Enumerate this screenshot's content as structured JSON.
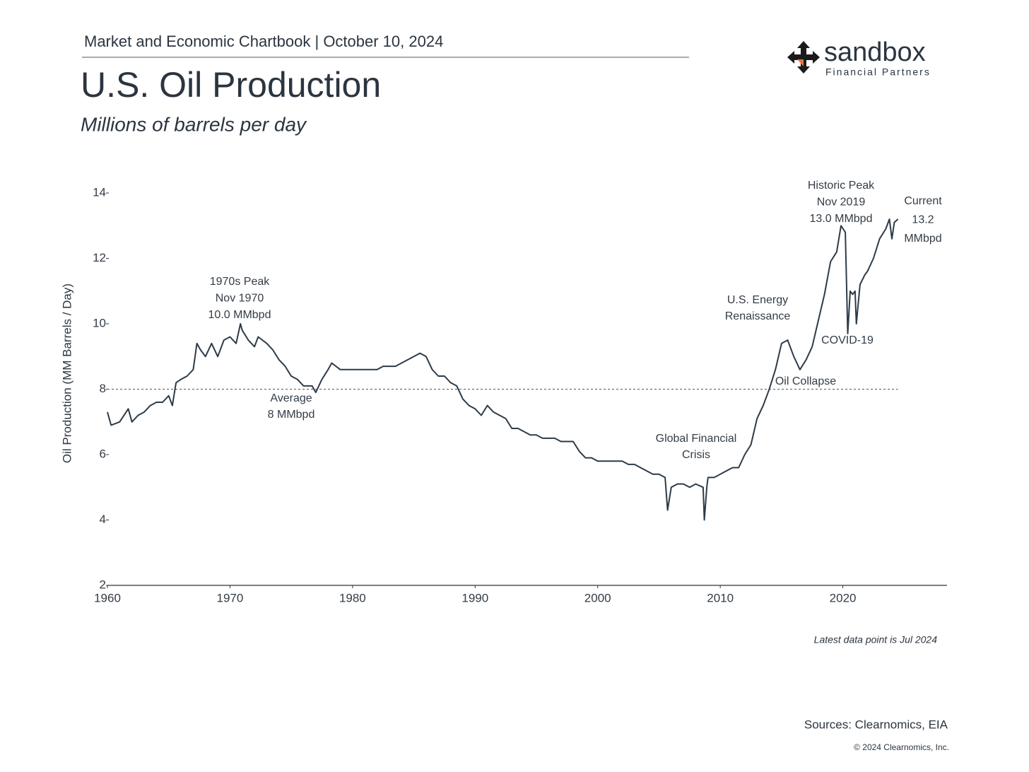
{
  "header": "Market and Economic Chartbook | October 10, 2024",
  "logo": {
    "name": "sandbox",
    "tagline": "Financial Partners"
  },
  "chart_data": {
    "type": "line",
    "title": "U.S. Oil Production",
    "subtitle": "Millions of barrels per day",
    "y_label": "Oil Production (MM Barrels / Day)",
    "color": "#2d3b48",
    "xlim": [
      1960,
      2028.5
    ],
    "xticks": [
      1960,
      1970,
      1980,
      1990,
      2000,
      2010,
      2020
    ],
    "ylim": [
      2,
      14
    ],
    "yticks": [
      2,
      4,
      6,
      8,
      10,
      12,
      14
    ],
    "grid": false,
    "reference_line": 8,
    "x": [
      1960,
      1960.3,
      1961,
      1961.7,
      1962,
      1962.5,
      1963,
      1963.5,
      1964,
      1964.5,
      1965,
      1965.3,
      1965.6,
      1966,
      1966.5,
      1967,
      1967.3,
      1967.6,
      1968,
      1968.5,
      1969,
      1969.5,
      1970,
      1970.5,
      1970.85,
      1971,
      1971.5,
      1972,
      1972.3,
      1973,
      1973.5,
      1974,
      1974.5,
      1975,
      1975.5,
      1976,
      1976.7,
      1977,
      1977.5,
      1978,
      1978.3,
      1979,
      1979.5,
      1980,
      1980.5,
      1981,
      1981.5,
      1982,
      1982.5,
      1983,
      1983.5,
      1984,
      1984.5,
      1985,
      1985.5,
      1986,
      1986.5,
      1987,
      1987.5,
      1988,
      1988.5,
      1989,
      1989.5,
      1990,
      1990.5,
      1991,
      1991.5,
      1992,
      1992.5,
      1993,
      1993.5,
      1994,
      1994.5,
      1995,
      1995.5,
      1996,
      1996.5,
      1997,
      1997.5,
      1998,
      1998.5,
      1999,
      1999.5,
      2000,
      2000.5,
      2001,
      2001.5,
      2002,
      2002.5,
      2003,
      2003.5,
      2004,
      2004.5,
      2005,
      2005.5,
      2005.7,
      2006,
      2006.5,
      2007,
      2007.5,
      2008,
      2008.6,
      2008.7,
      2008.9,
      2009,
      2009.5,
      2010,
      2010.5,
      2011,
      2011.5,
      2012,
      2012.5,
      2013,
      2013.5,
      2014,
      2014.5,
      2015,
      2015.5,
      2016,
      2016.5,
      2017,
      2017.5,
      2018,
      2018.5,
      2019,
      2019.5,
      2019.85,
      2020.2,
      2020.4,
      2020.6,
      2020.8,
      2021,
      2021.1,
      2021.4,
      2021.8,
      2022,
      2022.5,
      2023,
      2023.5,
      2023.8,
      2024,
      2024.2,
      2024.5
    ],
    "values": [
      7.3,
      6.9,
      7.0,
      7.4,
      7.0,
      7.2,
      7.3,
      7.5,
      7.6,
      7.6,
      7.8,
      7.5,
      8.2,
      8.3,
      8.4,
      8.6,
      9.4,
      9.2,
      9.0,
      9.4,
      9.0,
      9.5,
      9.6,
      9.4,
      10.0,
      9.8,
      9.5,
      9.3,
      9.6,
      9.4,
      9.2,
      8.9,
      8.7,
      8.4,
      8.3,
      8.1,
      8.1,
      7.9,
      8.3,
      8.6,
      8.8,
      8.6,
      8.6,
      8.6,
      8.6,
      8.6,
      8.6,
      8.6,
      8.7,
      8.7,
      8.7,
      8.8,
      8.9,
      9.0,
      9.1,
      9.0,
      8.6,
      8.4,
      8.4,
      8.2,
      8.1,
      7.7,
      7.5,
      7.4,
      7.2,
      7.5,
      7.3,
      7.2,
      7.1,
      6.8,
      6.8,
      6.7,
      6.6,
      6.6,
      6.5,
      6.5,
      6.5,
      6.4,
      6.4,
      6.4,
      6.1,
      5.9,
      5.9,
      5.8,
      5.8,
      5.8,
      5.8,
      5.8,
      5.7,
      5.7,
      5.6,
      5.5,
      5.4,
      5.4,
      5.3,
      4.3,
      5.0,
      5.1,
      5.1,
      5.0,
      5.1,
      5.0,
      4.0,
      5.0,
      5.3,
      5.3,
      5.4,
      5.5,
      5.6,
      5.6,
      6.0,
      6.3,
      7.1,
      7.5,
      8.0,
      8.6,
      9.4,
      9.5,
      9.0,
      8.6,
      8.9,
      9.3,
      10.1,
      10.9,
      11.9,
      12.2,
      13.0,
      12.8,
      9.7,
      11.0,
      10.9,
      11.0,
      10.0,
      11.2,
      11.5,
      11.6,
      12.0,
      12.6,
      12.9,
      13.2,
      12.6,
      13.1,
      13.2
    ],
    "annotations": [
      [
        "1970s Peak",
        "Nov 1970",
        "10.0 MMbpd"
      ],
      [
        "Average",
        "8 MMbpd"
      ],
      [
        "Global Financial",
        "Crisis"
      ],
      [
        "U.S. Energy",
        "Renaissance"
      ],
      [
        "Oil Collapse"
      ],
      [
        "COVID-19"
      ],
      [
        "Historic Peak",
        "Nov 2019",
        "13.0 MMbpd"
      ],
      [
        "Current",
        "13.2",
        "MMbpd"
      ]
    ],
    "note": "Latest data point is Jul 2024"
  },
  "sources": "Sources: Clearnomics, EIA",
  "copyright": "© 2024 Clearnomics, Inc."
}
